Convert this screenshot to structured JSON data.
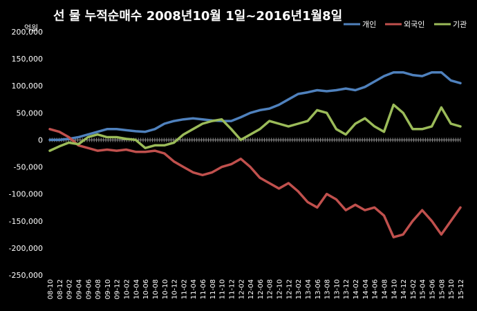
{
  "chart_data": {
    "type": "line",
    "title": "선 물 누적순매수 2008년10월 1일~2016년1월8일",
    "unit_label": "억원",
    "ylim": [
      -250000,
      200000
    ],
    "yticks": [
      "200,000",
      "150,000",
      "100,000",
      "50,000",
      "0",
      "-50,000",
      "-100,000",
      "-150,000",
      "-200,000",
      "-250,000"
    ],
    "ytick_values": [
      200000,
      150000,
      100000,
      50000,
      0,
      -50000,
      -100000,
      -150000,
      -200000,
      -250000
    ],
    "categories": [
      "08-10",
      "08-12",
      "09-02",
      "09-04",
      "09-06",
      "09-08",
      "09-10",
      "09-12",
      "10-02",
      "10-04",
      "10-06",
      "10-08",
      "10-10",
      "10-12",
      "11-02",
      "11-04",
      "11-06",
      "11-08",
      "11-10",
      "11-12",
      "12-02",
      "12-04",
      "12-06",
      "12-08",
      "12-10",
      "12-12",
      "13-02",
      "13-04",
      "13-06",
      "13-08",
      "13-10",
      "13-12",
      "14-02",
      "14-04",
      "14-06",
      "14-08",
      "14-10",
      "14-12",
      "15-02",
      "15-04",
      "15-06",
      "15-08",
      "15-10",
      "15-12"
    ],
    "legend_position": "top-right",
    "grid": false,
    "series": [
      {
        "name": "개인",
        "color": "#4f81bd",
        "values": [
          0,
          0,
          2000,
          5000,
          10000,
          15000,
          20000,
          20000,
          18000,
          16000,
          15000,
          20000,
          30000,
          35000,
          38000,
          40000,
          38000,
          36000,
          35000,
          35000,
          42000,
          50000,
          55000,
          58000,
          65000,
          75000,
          85000,
          88000,
          92000,
          90000,
          92000,
          95000,
          92000,
          98000,
          108000,
          118000,
          125000,
          125000,
          120000,
          118000,
          125000,
          125000,
          110000,
          105000
        ]
      },
      {
        "name": "외국인",
        "color": "#c0504d",
        "values": [
          20000,
          15000,
          5000,
          -10000,
          -15000,
          -20000,
          -18000,
          -20000,
          -18000,
          -22000,
          -22000,
          -20000,
          -25000,
          -40000,
          -50000,
          -60000,
          -65000,
          -60000,
          -50000,
          -45000,
          -35000,
          -50000,
          -70000,
          -80000,
          -90000,
          -80000,
          -95000,
          -115000,
          -125000,
          -100000,
          -110000,
          -130000,
          -120000,
          -130000,
          -125000,
          -140000,
          -180000,
          -175000,
          -150000,
          -130000,
          -150000,
          -175000,
          -150000,
          -125000
        ]
      },
      {
        "name": "기관",
        "color": "#9bbb59",
        "values": [
          -20000,
          -12000,
          -5000,
          -8000,
          5000,
          10000,
          5000,
          5000,
          2000,
          0,
          -15000,
          -10000,
          -10000,
          -5000,
          10000,
          20000,
          30000,
          35000,
          38000,
          20000,
          0,
          10000,
          20000,
          35000,
          30000,
          25000,
          30000,
          35000,
          55000,
          50000,
          20000,
          10000,
          30000,
          40000,
          25000,
          15000,
          65000,
          50000,
          20000,
          20000,
          25000,
          60000,
          30000,
          25000
        ]
      }
    ]
  }
}
